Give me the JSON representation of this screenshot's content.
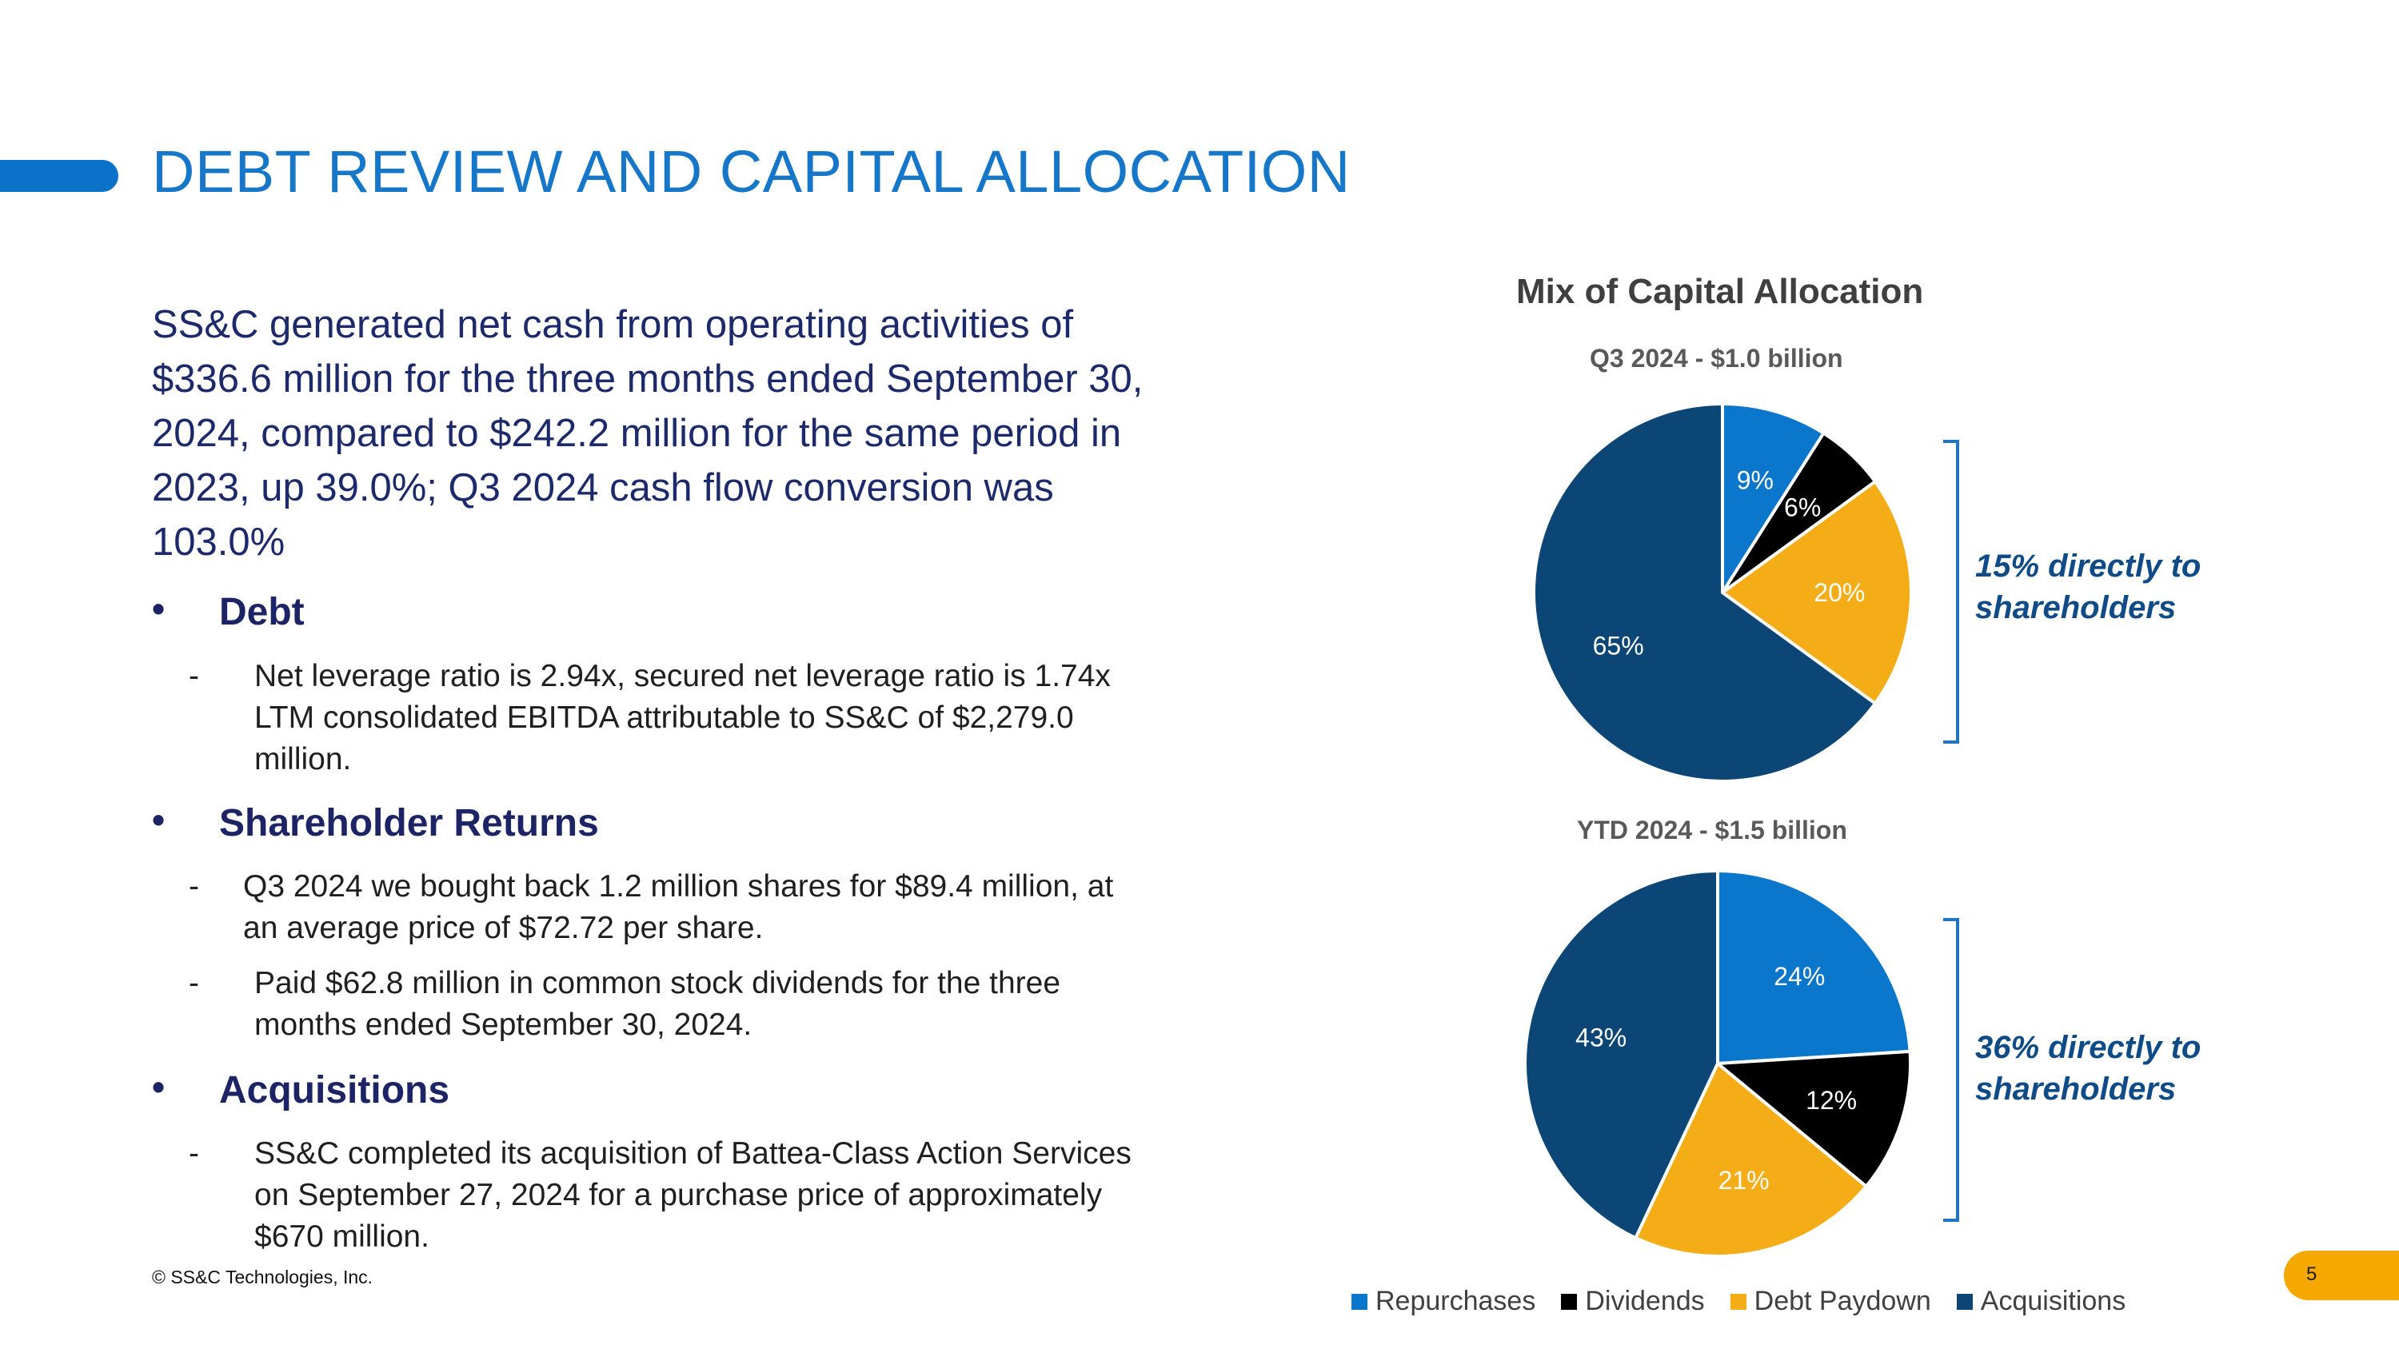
{
  "slide": {
    "title": "DEBT REVIEW AND CAPITAL ALLOCATION",
    "intro": "SS&C generated net cash from operating activities of $336.6 million for the three months ended September 30, 2024, compared to $242.2 million for the same period in 2023, up 39.0%; Q3 2024 cash flow conversion was 103.0%",
    "bullet_symbol": "•",
    "dash_symbol": "-",
    "sections": [
      {
        "heading": "Debt",
        "items": [
          [
            "Net leverage ratio is 2.94x, secured net leverage ratio is 1.74x",
            "LTM consolidated EBITDA attributable to SS&C of $2,279.0",
            "million."
          ]
        ]
      },
      {
        "heading": "Shareholder Returns",
        "items": [
          [
            "Q3 2024 we bought back 1.2 million shares for $89.4 million, at",
            "an average price of $72.72 per share."
          ],
          [
            "Paid $62.8 million in common stock dividends for the three",
            "months ended September 30, 2024."
          ]
        ]
      },
      {
        "heading": "Acquisitions",
        "items": [
          [
            "SS&C completed its acquisition of Battea-Class Action Services",
            "on September 27, 2024 for a purchase price of approximately",
            "$670 million."
          ]
        ]
      }
    ],
    "footer": "© SS&C Technologies, Inc.",
    "page_number": "5"
  },
  "colors": {
    "title": "#1677c9",
    "accent_bar": "#0a72c8",
    "page_badge": "#f5a800",
    "callout": "#0f4b86",
    "bracket": "#1f74c4"
  },
  "chart_data": {
    "type": "pie",
    "title": "Mix of Capital Allocation",
    "legend": {
      "position": "bottom",
      "entries": [
        "Repurchases",
        "Dividends",
        "Debt Paydown",
        "Acquisitions"
      ]
    },
    "series_colors": [
      "#0a77cc",
      "#000000",
      "#f4ad16",
      "#0c4677"
    ],
    "pies": [
      {
        "subtitle": "Q3 2024 - $1.0 billion",
        "categories": [
          "Repurchases",
          "Dividends",
          "Debt Paydown",
          "Acquisitions"
        ],
        "values": [
          9,
          6,
          20,
          65
        ],
        "labels": [
          "9%",
          "6%",
          "20%",
          "65%"
        ],
        "callout": "15% directly to shareholders"
      },
      {
        "subtitle": "YTD 2024 - $1.5 billion",
        "categories": [
          "Repurchases",
          "Dividends",
          "Debt Paydown",
          "Acquisitions"
        ],
        "values": [
          24,
          12,
          21,
          43
        ],
        "labels": [
          "24%",
          "12%",
          "21%",
          "43%"
        ],
        "callout": "36% directly to shareholders"
      }
    ]
  }
}
